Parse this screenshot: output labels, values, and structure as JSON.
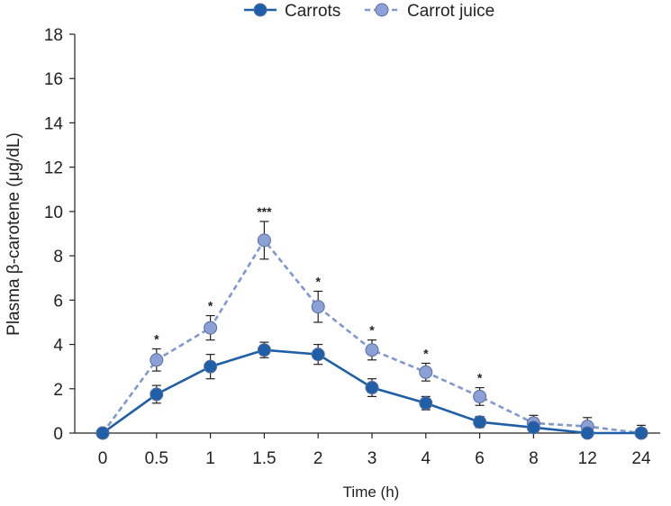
{
  "chart_data": {
    "type": "line",
    "title": "",
    "xlabel": "Time (h)",
    "ylabel": "Plasma β-carotene (μg/dL)",
    "categories": [
      "0",
      "0.5",
      "1",
      "1.5",
      "2",
      "3",
      "4",
      "6",
      "8",
      "12",
      "24"
    ],
    "ylim": [
      0,
      18
    ],
    "yticks": [
      "0",
      "2",
      "4",
      "6",
      "8",
      "10",
      "12",
      "14",
      "16",
      "18"
    ],
    "grid": false,
    "legend_position": "top-center",
    "series": [
      {
        "name": "Carrots",
        "style": "solid",
        "color": "#1f5fa8",
        "marker_color": "#1f5fa8",
        "values": [
          0,
          1.75,
          3.0,
          3.75,
          3.55,
          2.05,
          1.35,
          0.5,
          0.25,
          0.0,
          0.0
        ],
        "errors": [
          0,
          0.4,
          0.55,
          0.35,
          0.45,
          0.4,
          0.3,
          0.25,
          0.2,
          0.1,
          0.1
        ]
      },
      {
        "name": "Carrot juice",
        "style": "dashed",
        "color": "#7f98cf",
        "marker_color": "#8aa0d6",
        "values": [
          0,
          3.3,
          4.75,
          8.7,
          5.7,
          3.75,
          2.75,
          1.65,
          0.45,
          0.3,
          0.0
        ],
        "errors": [
          0,
          0.5,
          0.55,
          0.85,
          0.7,
          0.45,
          0.4,
          0.4,
          0.35,
          0.4,
          0.35
        ]
      }
    ],
    "annotations": [
      {
        "category": "0.5",
        "text": "*"
      },
      {
        "category": "1",
        "text": "*"
      },
      {
        "category": "1.5",
        "text": "***"
      },
      {
        "category": "2",
        "text": "*"
      },
      {
        "category": "3",
        "text": "*"
      },
      {
        "category": "4",
        "text": "*"
      },
      {
        "category": "6",
        "text": "*"
      }
    ]
  }
}
